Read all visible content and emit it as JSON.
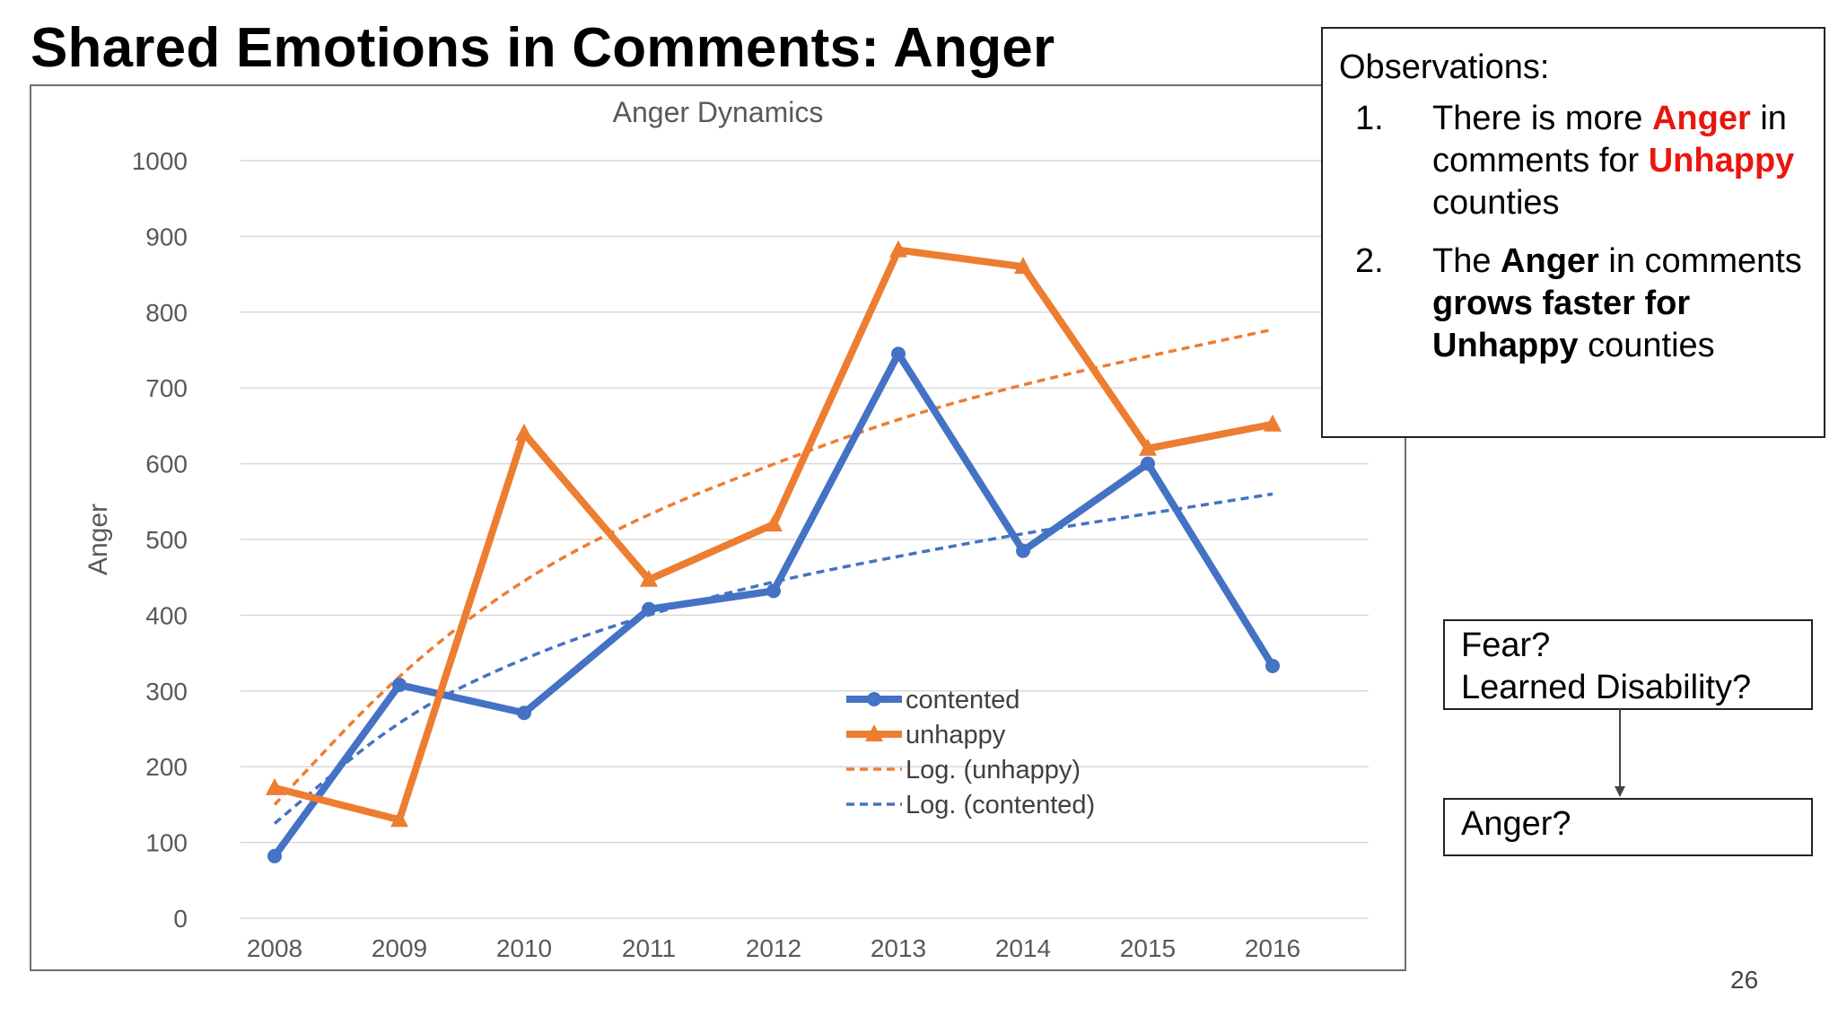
{
  "slide": {
    "title": "Shared Emotions in Comments: Anger",
    "page_number": "26"
  },
  "observations": {
    "heading": "Observations:",
    "items": [
      {
        "number": "1.",
        "parts": [
          {
            "text": "There is more ",
            "style": "normal"
          },
          {
            "text": "Anger",
            "style": "red"
          },
          {
            "text": " in comments for ",
            "style": "normal"
          },
          {
            "text": "Unhappy",
            "style": "red"
          },
          {
            "text": " counties",
            "style": "normal"
          }
        ]
      },
      {
        "number": "2.",
        "parts": [
          {
            "text": "The ",
            "style": "normal"
          },
          {
            "text": "Anger",
            "style": "bold"
          },
          {
            "text": " in comments ",
            "style": "normal"
          },
          {
            "text": "grows faster for Unhappy",
            "style": "bold"
          },
          {
            "text": " counties",
            "style": "normal"
          }
        ]
      }
    ]
  },
  "side_boxes": {
    "fear_lines": [
      "Fear?",
      "Learned Disability?"
    ],
    "anger": "Anger?"
  },
  "chart_data": {
    "type": "line",
    "title": "Anger Dynamics",
    "xlabel": "",
    "ylabel": "Anger",
    "ylim": [
      0,
      1000
    ],
    "yticks": [
      0,
      100,
      200,
      300,
      400,
      500,
      600,
      700,
      800,
      900,
      1000
    ],
    "grid": true,
    "legend_position": "inside-bottom-center",
    "categories": [
      "2008",
      "2009",
      "2010",
      "2011",
      "2012",
      "2013",
      "2014",
      "2015",
      "2016"
    ],
    "series": [
      {
        "name": "contented",
        "style": "solid",
        "marker": "circle",
        "color": "#4472c4",
        "values": [
          82,
          308,
          271,
          408,
          432,
          745,
          485,
          600,
          333
        ]
      },
      {
        "name": "unhappy",
        "style": "solid",
        "marker": "triangle",
        "color": "#ed7d31",
        "values": [
          172,
          130,
          640,
          447,
          520,
          882,
          860,
          620,
          652
        ]
      },
      {
        "name": "Log. (unhappy)",
        "style": "dashed",
        "marker": "none",
        "color": "#ed7d31",
        "trendline_of": "unhappy",
        "values": [
          150,
          325,
          450,
          535,
          600,
          660,
          705,
          742,
          777
        ]
      },
      {
        "name": "Log. (contented)",
        "style": "dashed",
        "marker": "none",
        "color": "#4472c4",
        "trendline_of": "contented",
        "values": [
          125,
          265,
          345,
          402,
          445,
          478,
          508,
          534,
          560
        ]
      }
    ]
  }
}
